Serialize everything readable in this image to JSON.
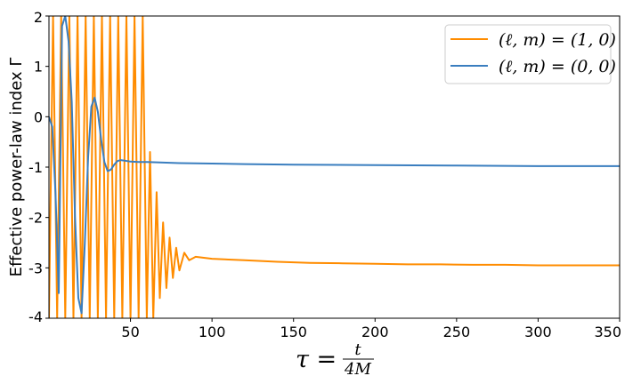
{
  "chart_data": {
    "type": "line",
    "title": "",
    "ylabel": "Effective power-law index Γ",
    "xlabel": {
      "lhs": "τ =",
      "numerator": "t",
      "denominator": "4M"
    },
    "xlim": [
      0,
      350
    ],
    "ylim": [
      -4,
      2
    ],
    "xticks": [
      50,
      100,
      150,
      200,
      250,
      300,
      350
    ],
    "xtick_labels": [
      "50",
      "100",
      "150",
      "200",
      "250",
      "300",
      "350"
    ],
    "yticks": [
      2,
      1,
      0,
      -1,
      -2,
      -3,
      -4
    ],
    "ytick_labels": [
      "2",
      "1",
      "0",
      "-1",
      "-2",
      "-3",
      "-4"
    ],
    "grid": false,
    "legend": "top-right",
    "series": [
      {
        "name": "(ℓ, m) = (1, 0)",
        "color": "#ff8c00",
        "x": [
          0,
          2.5,
          5,
          7.5,
          10,
          12.5,
          15,
          17.5,
          20,
          22.5,
          25,
          27.5,
          30,
          32.5,
          35,
          37.5,
          40,
          42.5,
          45,
          47.5,
          50,
          52.5,
          55,
          57.5,
          60,
          62,
          64,
          66,
          68,
          70,
          72,
          74,
          76,
          78,
          80,
          83,
          86,
          90,
          100,
          120,
          140,
          160,
          180,
          200,
          220,
          240,
          260,
          280,
          300,
          320,
          340,
          350
        ],
        "y": [
          -4,
          2,
          -4,
          2,
          -4,
          2,
          -4,
          2,
          -4,
          2,
          -4,
          2,
          -4,
          2,
          -4,
          2,
          -4,
          2,
          -4,
          2,
          -4,
          2,
          -4,
          2,
          -4,
          -0.7,
          -4,
          -1.5,
          -3.6,
          -2.1,
          -3.4,
          -2.4,
          -3.2,
          -2.6,
          -3.05,
          -2.7,
          -2.85,
          -2.78,
          -2.82,
          -2.85,
          -2.88,
          -2.9,
          -2.91,
          -2.92,
          -2.93,
          -2.93,
          -2.94,
          -2.94,
          -2.95,
          -2.95,
          -2.95,
          -2.95
        ]
      },
      {
        "name": "(ℓ, m) = (0, 0)",
        "color": "#3a7ebf",
        "x": [
          0,
          2,
          4,
          6,
          8,
          10,
          12,
          14,
          16,
          18,
          20,
          22,
          24,
          26,
          28,
          30,
          32,
          34,
          36,
          38,
          40,
          42,
          44,
          46,
          48,
          50,
          55,
          60,
          70,
          80,
          100,
          120,
          150,
          200,
          250,
          300,
          350
        ],
        "y": [
          0,
          -0.2,
          -1.5,
          -3.5,
          1.8,
          2,
          1.5,
          0.3,
          -2,
          -3.6,
          -3.9,
          -2.5,
          -0.8,
          0.2,
          0.38,
          0.1,
          -0.45,
          -0.9,
          -1.08,
          -1.05,
          -0.95,
          -0.88,
          -0.86,
          -0.87,
          -0.88,
          -0.89,
          -0.9,
          -0.9,
          -0.91,
          -0.92,
          -0.93,
          -0.94,
          -0.95,
          -0.96,
          -0.97,
          -0.98,
          -0.98
        ]
      }
    ]
  }
}
